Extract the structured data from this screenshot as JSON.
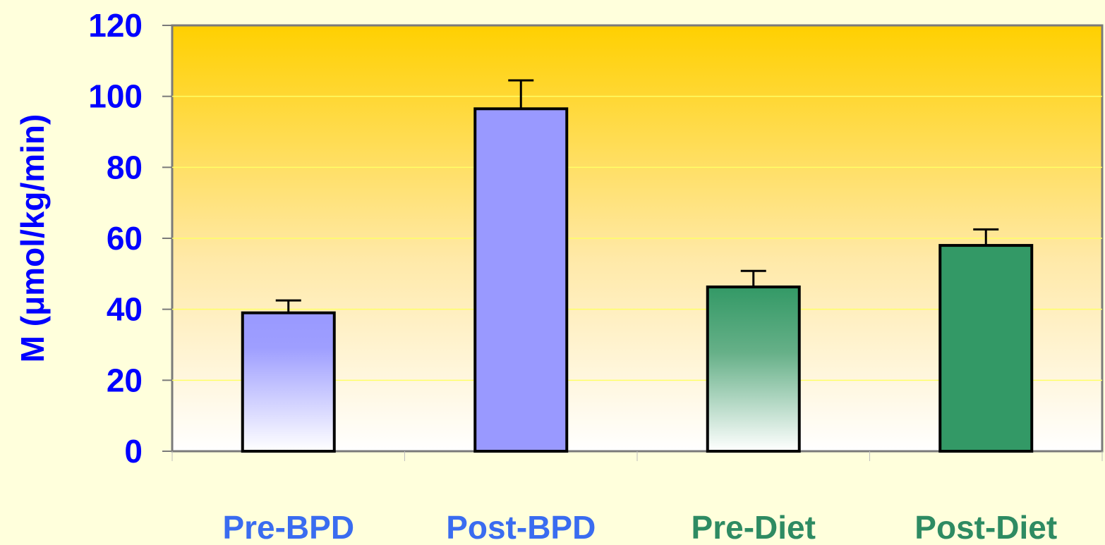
{
  "chart_data": {
    "type": "bar",
    "categories": [
      "Pre-BPD",
      "Post-BPD",
      "Pre-Diet",
      "Post-Diet"
    ],
    "values": [
      39,
      96.5,
      46.3,
      58
    ],
    "errors": [
      3.5,
      8,
      4.5,
      4.5
    ],
    "ylabel": "M (μmol/kg/min)",
    "xlabel": "",
    "ylim": [
      0,
      120
    ],
    "yticks": [
      "0",
      "20",
      "40",
      "60",
      "80",
      "100",
      "120"
    ],
    "grid": true,
    "colors": {
      "background": "#ffffdc",
      "plot_top": "#ffd000",
      "plot_bottom": "#ffffff",
      "axis_text": "#0000ff",
      "bpd_fill": "#9999ff",
      "bpd_label": "#3a6cf0",
      "diet_fill": "#339966",
      "diet_label": "#2e8b62",
      "bar_outline": "#000000",
      "gridline": "#ffff66",
      "plot_border": "#7a7a7a"
    },
    "bar_styles": [
      "gradient-bpd",
      "solid-bpd",
      "gradient-diet",
      "solid-diet"
    ],
    "label_colors": [
      "bpd_label",
      "bpd_label",
      "diet_label",
      "diet_label"
    ]
  }
}
